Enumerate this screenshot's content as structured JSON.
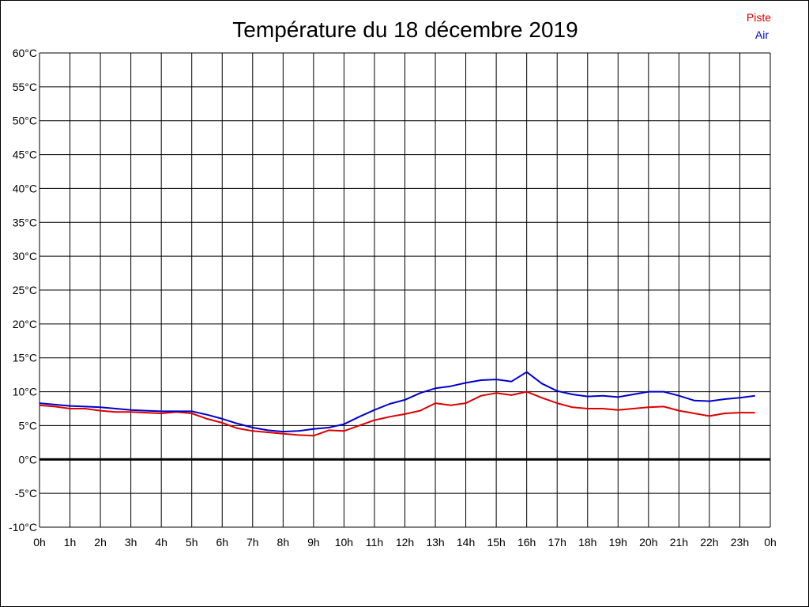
{
  "chart_data": {
    "type": "line",
    "title": "Température du 18 décembre 2019",
    "xlabel": "",
    "ylabel": "",
    "x_tick_labels": [
      "0h",
      "1h",
      "2h",
      "3h",
      "4h",
      "5h",
      "6h",
      "7h",
      "8h",
      "9h",
      "10h",
      "11h",
      "12h",
      "13h",
      "14h",
      "15h",
      "16h",
      "17h",
      "18h",
      "19h",
      "20h",
      "21h",
      "22h",
      "23h",
      "0h"
    ],
    "y_tick_labels": [
      "-10°C",
      "-5°C",
      "0°C",
      "5°C",
      "10°C",
      "15°C",
      "20°C",
      "25°C",
      "30°C",
      "35°C",
      "40°C",
      "45°C",
      "50°C",
      "55°C",
      "60°C"
    ],
    "xlim": [
      0,
      24
    ],
    "ylim": [
      -10,
      60
    ],
    "grid": true,
    "legend_position": "top-right",
    "colors": {
      "piste": "#dd0000",
      "air": "#0000cc"
    },
    "x": [
      0,
      0.5,
      1,
      1.5,
      2,
      2.5,
      3,
      3.5,
      4,
      4.5,
      5,
      5.5,
      6,
      6.5,
      7,
      7.5,
      8,
      8.5,
      9,
      9.5,
      10,
      10.5,
      11,
      11.5,
      12,
      12.5,
      13,
      13.5,
      14,
      14.5,
      15,
      15.5,
      16,
      16.5,
      17,
      17.5,
      18,
      18.5,
      19,
      19.5,
      20,
      20.5,
      21,
      21.5,
      22,
      22.5,
      23,
      23.5
    ],
    "series": [
      {
        "name": "Piste",
        "values": [
          8.0,
          7.8,
          7.5,
          7.5,
          7.2,
          7.0,
          7.0,
          6.9,
          6.8,
          7.0,
          6.8,
          6.0,
          5.4,
          4.6,
          4.2,
          4.0,
          3.8,
          3.6,
          3.5,
          4.3,
          4.2,
          5.0,
          5.8,
          6.3,
          6.7,
          7.2,
          8.3,
          8.0,
          8.3,
          9.4,
          9.8,
          9.5,
          10.0,
          9.1,
          8.3,
          7.7,
          7.5,
          7.5,
          7.3,
          7.5,
          7.7,
          7.8,
          7.2,
          6.8,
          6.4,
          6.8,
          6.9,
          6.9
        ]
      },
      {
        "name": "Air",
        "values": [
          8.3,
          8.1,
          7.9,
          7.8,
          7.7,
          7.5,
          7.3,
          7.2,
          7.1,
          7.1,
          7.1,
          6.6,
          6.0,
          5.3,
          4.7,
          4.3,
          4.1,
          4.2,
          4.5,
          4.7,
          5.2,
          6.3,
          7.3,
          8.2,
          8.8,
          9.8,
          10.5,
          10.8,
          11.3,
          11.7,
          11.8,
          11.5,
          12.9,
          11.2,
          10.1,
          9.6,
          9.3,
          9.4,
          9.2,
          9.6,
          10.0,
          10.0,
          9.4,
          8.7,
          8.6,
          8.9,
          9.1,
          9.4
        ]
      }
    ]
  }
}
